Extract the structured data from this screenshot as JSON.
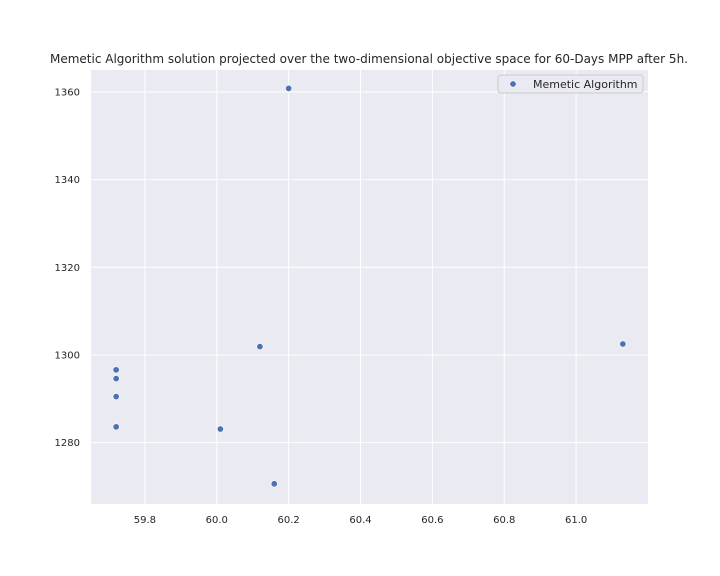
{
  "chart_data": {
    "type": "scatter",
    "title": "Memetic Algorithm solution projected over the two-dimensional objective space for 60-Days MPP after 5h.",
    "xlabel": "",
    "ylabel": "",
    "xlim": [
      59.65,
      61.2
    ],
    "ylim": [
      1266,
      1365
    ],
    "x_ticks": [
      59.8,
      60.0,
      60.2,
      60.4,
      60.6,
      60.8,
      61.0
    ],
    "y_ticks": [
      1280,
      1300,
      1320,
      1340,
      1360
    ],
    "grid": true,
    "legend_position": "top-right",
    "series": [
      {
        "name": "Memetic Algorithm",
        "color": "#4c72b0",
        "points": [
          {
            "x": 60.2,
            "y": 1360.8
          },
          {
            "x": 60.12,
            "y": 1301.9
          },
          {
            "x": 61.13,
            "y": 1302.5
          },
          {
            "x": 59.72,
            "y": 1296.6
          },
          {
            "x": 59.72,
            "y": 1294.6
          },
          {
            "x": 59.72,
            "y": 1290.5
          },
          {
            "x": 59.72,
            "y": 1283.6
          },
          {
            "x": 60.01,
            "y": 1283.1
          },
          {
            "x": 60.16,
            "y": 1270.6
          }
        ]
      }
    ]
  }
}
